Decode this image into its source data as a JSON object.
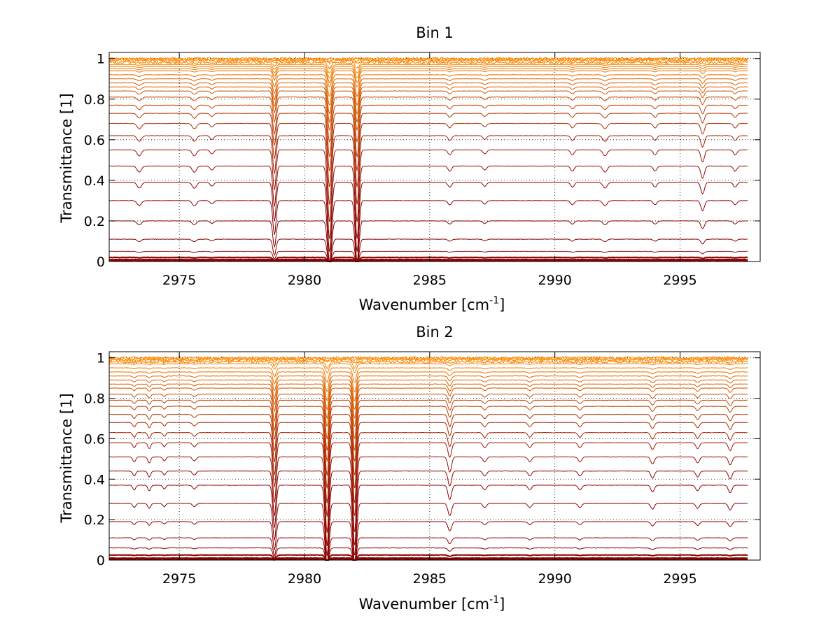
{
  "chart_data": [
    {
      "type": "line",
      "title": "Bin 1",
      "xlabel_main": "Wavenumber [cm",
      "xlabel_sup": "-1",
      "xlabel_end": "]",
      "ylabel": "Transmittance [1]",
      "xlim": [
        2972.2,
        2998.2
      ],
      "ylim": [
        0,
        1.03
      ],
      "xticks": [
        2975,
        2980,
        2985,
        2990,
        2995
      ],
      "xtick_labels": [
        "2975",
        "2980",
        "2985",
        "2990",
        "2995"
      ],
      "yticks": [
        0,
        0.2,
        0.4,
        0.6,
        0.8,
        1
      ],
      "ytick_labels": [
        "0",
        "0.2",
        "0.4",
        "0.6",
        "0.8",
        "1"
      ],
      "grid": "dotted",
      "baselines": [
        1.0,
        0.995,
        0.99,
        0.98,
        0.97,
        0.96,
        0.95,
        0.94,
        0.92,
        0.9,
        0.88,
        0.86,
        0.84,
        0.81,
        0.77,
        0.73,
        0.68,
        0.62,
        0.55,
        0.47,
        0.39,
        0.3,
        0.2,
        0.11,
        0.05,
        0.02,
        0.01,
        0.005
      ],
      "lines": [
        {
          "x": 2973.4,
          "depth": 0.06,
          "width": 0.12
        },
        {
          "x": 2975.6,
          "depth": 0.06,
          "width": 0.12
        },
        {
          "x": 2976.3,
          "depth": 0.04,
          "width": 0.1
        },
        {
          "x": 2978.8,
          "depth": 0.4,
          "width": 0.09
        },
        {
          "x": 2981.0,
          "depth": 0.72,
          "width": 0.11
        },
        {
          "x": 2982.1,
          "depth": 0.72,
          "width": 0.1
        },
        {
          "x": 2985.8,
          "depth": 0.05,
          "width": 0.1
        },
        {
          "x": 2987.2,
          "depth": 0.04,
          "width": 0.1
        },
        {
          "x": 2990.7,
          "depth": 0.05,
          "width": 0.1
        },
        {
          "x": 2992.0,
          "depth": 0.06,
          "width": 0.12
        },
        {
          "x": 2994.0,
          "depth": 0.05,
          "width": 0.1
        },
        {
          "x": 2995.9,
          "depth": 0.12,
          "width": 0.1
        },
        {
          "x": 2997.2,
          "depth": 0.05,
          "width": 0.1
        }
      ]
    },
    {
      "type": "line",
      "title": "Bin 2",
      "xlabel_main": "Wavenumber [cm",
      "xlabel_sup": "-1",
      "xlabel_end": "]",
      "ylabel": "Transmittance [1]",
      "xlim": [
        2972.2,
        2998.2
      ],
      "ylim": [
        0,
        1.03
      ],
      "xticks": [
        2975,
        2980,
        2985,
        2990,
        2995
      ],
      "xtick_labels": [
        "2975",
        "2980",
        "2985",
        "2990",
        "2995"
      ],
      "yticks": [
        0,
        0.2,
        0.4,
        0.6,
        0.8,
        1
      ],
      "ytick_labels": [
        "0",
        "0.2",
        "0.4",
        "0.6",
        "0.8",
        "1"
      ],
      "grid": "dotted",
      "baselines": [
        1.0,
        0.995,
        0.99,
        0.98,
        0.97,
        0.95,
        0.93,
        0.91,
        0.89,
        0.87,
        0.85,
        0.82,
        0.79,
        0.76,
        0.72,
        0.68,
        0.63,
        0.58,
        0.51,
        0.44,
        0.37,
        0.28,
        0.19,
        0.11,
        0.06,
        0.025,
        0.01,
        0.005
      ],
      "lines": [
        {
          "x": 2973.2,
          "depth": 0.05,
          "width": 0.08
        },
        {
          "x": 2973.8,
          "depth": 0.06,
          "width": 0.08
        },
        {
          "x": 2974.4,
          "depth": 0.04,
          "width": 0.08
        },
        {
          "x": 2975.6,
          "depth": 0.04,
          "width": 0.1
        },
        {
          "x": 2978.8,
          "depth": 0.45,
          "width": 0.09
        },
        {
          "x": 2980.9,
          "depth": 0.75,
          "width": 0.1
        },
        {
          "x": 2982.0,
          "depth": 0.75,
          "width": 0.1
        },
        {
          "x": 2985.8,
          "depth": 0.15,
          "width": 0.1
        },
        {
          "x": 2987.2,
          "depth": 0.05,
          "width": 0.1
        },
        {
          "x": 2989.0,
          "depth": 0.05,
          "width": 0.1
        },
        {
          "x": 2991.0,
          "depth": 0.05,
          "width": 0.1
        },
        {
          "x": 2993.9,
          "depth": 0.07,
          "width": 0.1
        },
        {
          "x": 2995.7,
          "depth": 0.06,
          "width": 0.1
        },
        {
          "x": 2997.0,
          "depth": 0.08,
          "width": 0.1
        }
      ]
    }
  ],
  "colors": {
    "series_low": "#8b0000",
    "series_high": "#ff8c00"
  }
}
